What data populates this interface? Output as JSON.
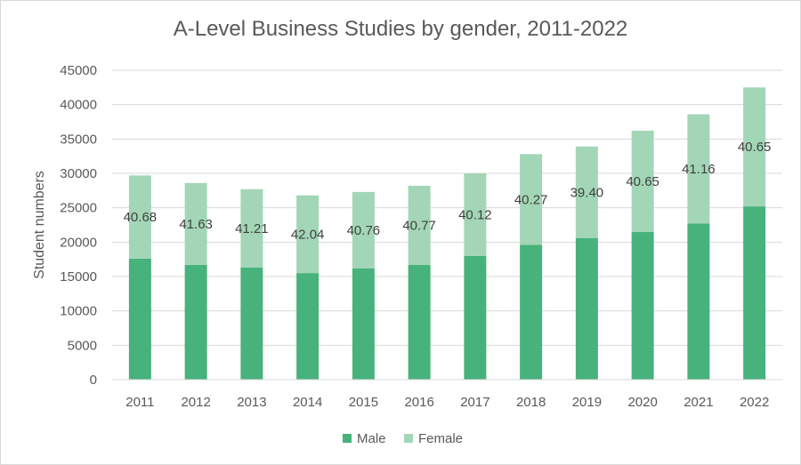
{
  "chart_data": {
    "type": "bar",
    "stacked": true,
    "title": "A-Level Business Studies by gender, 2011-2022",
    "xlabel": "",
    "ylabel": "Student numbers",
    "ylim": [
      0,
      45000
    ],
    "yticks": [
      0,
      5000,
      10000,
      15000,
      20000,
      25000,
      30000,
      35000,
      40000,
      45000
    ],
    "grid": true,
    "legend_position": "bottom",
    "categories": [
      "2011",
      "2012",
      "2013",
      "2014",
      "2015",
      "2016",
      "2017",
      "2018",
      "2019",
      "2020",
      "2021",
      "2022"
    ],
    "series": [
      {
        "name": "Male",
        "color": "#47b27b",
        "values": [
          17600,
          16700,
          16300,
          15500,
          16200,
          16700,
          18000,
          19600,
          20600,
          21500,
          22700,
          25200
        ]
      },
      {
        "name": "Female",
        "color": "#a2d6b7",
        "values": [
          12100,
          11900,
          11400,
          11300,
          11100,
          11500,
          12000,
          13200,
          13300,
          14700,
          15900,
          17300
        ]
      }
    ],
    "data_labels": [
      "40.68",
      "41.63",
      "41.21",
      "42.04",
      "40.76",
      "40.77",
      "40.12",
      "40.27",
      "39.40",
      "40.65",
      "41.16",
      "40.65"
    ]
  }
}
